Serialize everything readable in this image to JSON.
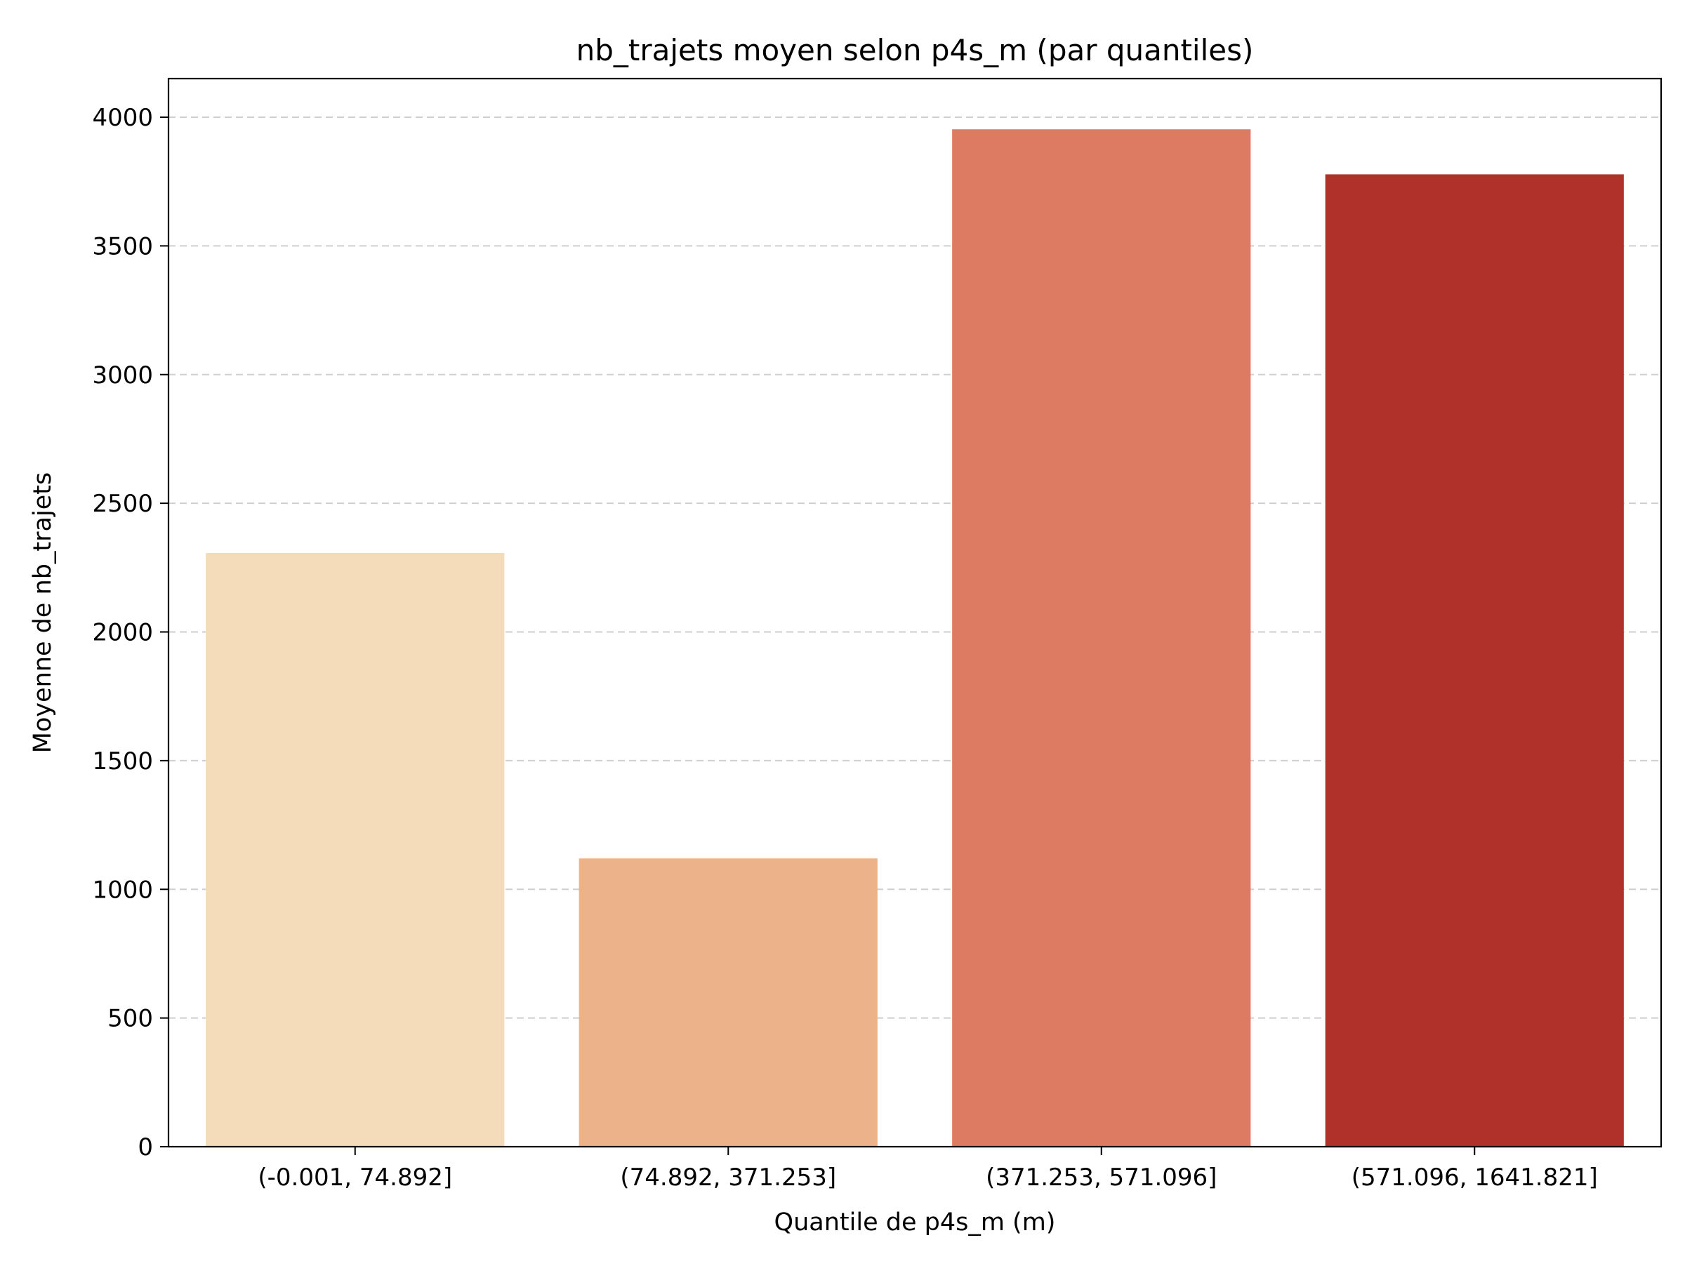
{
  "chart_data": {
    "type": "bar",
    "title": "nb_trajets moyen selon p4s_m (par quantiles)",
    "xlabel": "Quantile de p4s_m (m)",
    "ylabel": "Moyenne de nb_trajets",
    "categories": [
      "(-0.001, 74.892]",
      "(74.892, 371.253]",
      "(371.253, 571.096]",
      "(571.096, 1641.821]"
    ],
    "values": [
      2307,
      1120,
      3953,
      3778
    ],
    "colors": [
      "#f4dbb9",
      "#ecb38b",
      "#dd7a62",
      "#b0312a"
    ],
    "ylim": [
      0,
      4150
    ],
    "yticks": [
      0,
      500,
      1000,
      1500,
      2000,
      2500,
      3000,
      3500,
      4000
    ],
    "ytick_labels": [
      "0",
      "500",
      "1000",
      "1500",
      "2000",
      "2500",
      "3000",
      "3500",
      "4000"
    ],
    "grid": "y-dashed",
    "legend": "none"
  }
}
